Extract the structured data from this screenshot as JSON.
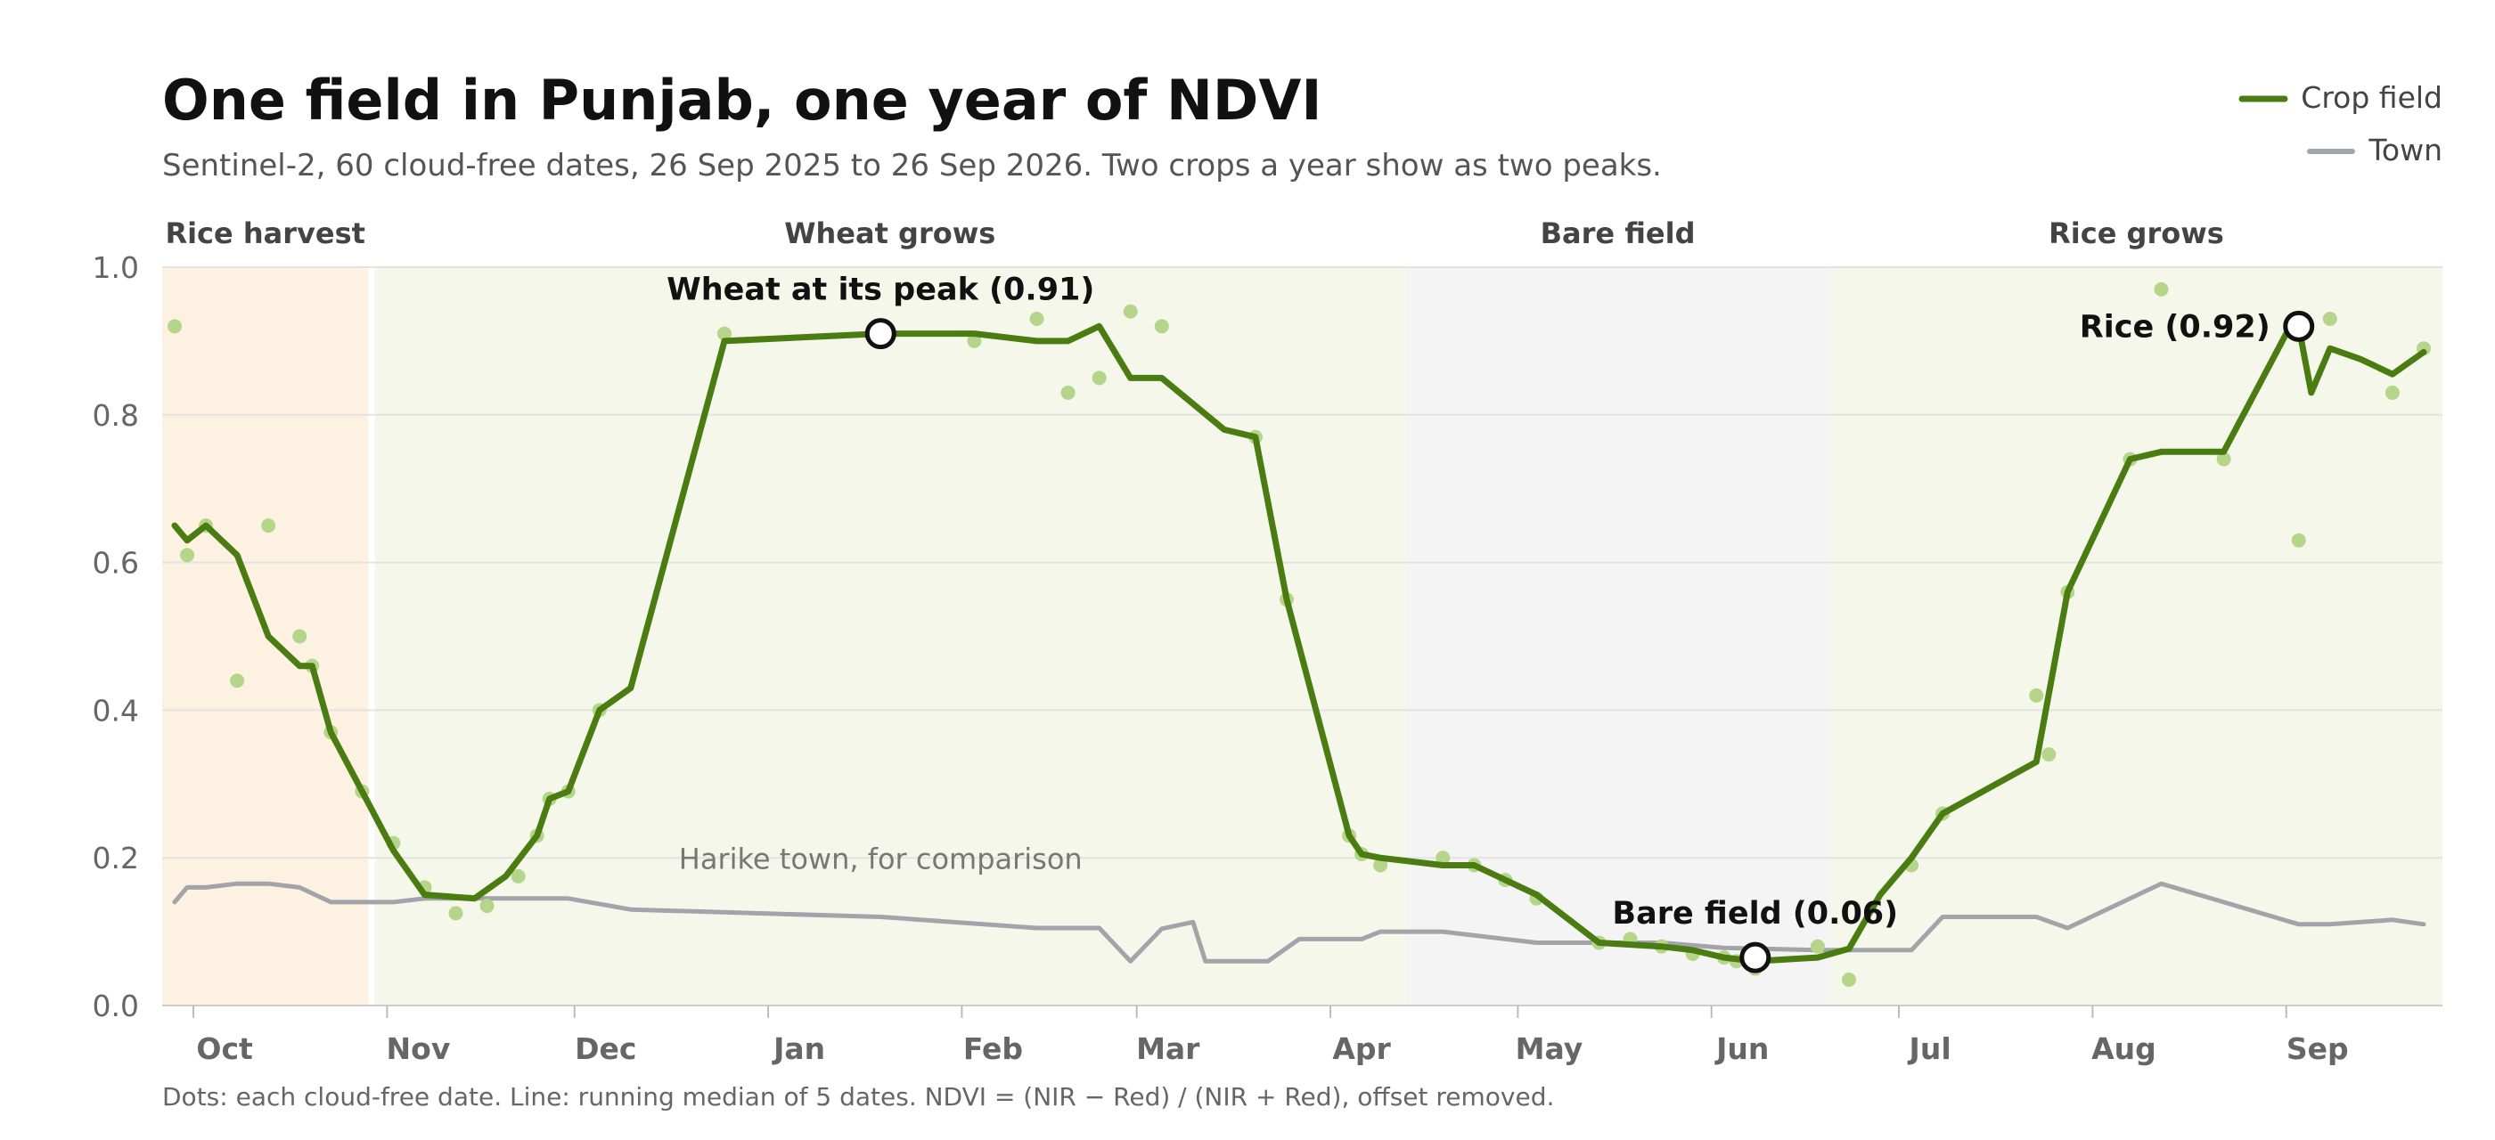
{
  "chart_data": {
    "type": "line",
    "title": "One field in Punjab, one year of NDVI",
    "subtitle": "Sentinel-2, 60 cloud-free dates, 26 Sep 2025 to 26 Sep 2026. Two crops a year show as two peaks.",
    "footnote": "Dots: each cloud-free date. Line: running median of 5 dates. NDVI = (NIR − Red) / (NIR + Red), offset removed.",
    "x_range": [
      "2025-09-26",
      "2026-09-26"
    ],
    "ylim": [
      0,
      1.0
    ],
    "yticks": [
      0.0,
      0.2,
      0.4,
      0.6,
      0.8,
      1.0
    ],
    "ytick_labels": [
      "0.0",
      "0.2",
      "0.4",
      "0.6",
      "0.8",
      "1.0"
    ],
    "grid": true,
    "legend_placement": "top-right",
    "colors": {
      "crop": "#4a7c12",
      "crop_dots": "#b5d68a",
      "town": "#a3a3aa"
    },
    "months": [
      {
        "label": "Oct",
        "tick": "2025-10-01",
        "label_at": "2025-10-06"
      },
      {
        "label": "Nov",
        "tick": "2025-11-01",
        "label_at": "2025-11-06"
      },
      {
        "label": "Dec",
        "tick": "2025-12-01",
        "label_at": "2025-12-06"
      },
      {
        "label": "Jan",
        "tick": "2026-01-01",
        "label_at": "2026-01-06"
      },
      {
        "label": "Feb",
        "tick": "2026-02-01",
        "label_at": "2026-02-06"
      },
      {
        "label": "Mar",
        "tick": "2026-03-01",
        "label_at": "2026-03-06"
      },
      {
        "label": "Apr",
        "tick": "2026-04-01",
        "label_at": "2026-04-06"
      },
      {
        "label": "May",
        "tick": "2026-05-01",
        "label_at": "2026-05-06"
      },
      {
        "label": "Jun",
        "tick": "2026-06-01",
        "label_at": "2026-06-06"
      },
      {
        "label": "Jul",
        "tick": "2026-07-01",
        "label_at": "2026-07-06"
      },
      {
        "label": "Aug",
        "tick": "2026-08-01",
        "label_at": "2026-08-06"
      },
      {
        "label": "Sep",
        "tick": "2026-09-01",
        "label_at": "2026-09-06"
      }
    ],
    "phases": [
      {
        "label": "Rice harvest",
        "start": "2025-09-26",
        "end": "2025-10-29",
        "color": "#fdf1e2"
      },
      {
        "label": "Wheat grows",
        "start": "2025-10-30",
        "end": "2026-04-13",
        "color": "#f5f7eb"
      },
      {
        "label": "Bare field",
        "start": "2026-04-13",
        "end": "2026-06-20",
        "color": "#f4f4f4"
      },
      {
        "label": "Rice grows",
        "start": "2026-06-20",
        "end": "2026-09-26",
        "color": "#f5f7eb"
      }
    ],
    "series": [
      {
        "name": "Crop field",
        "points": [
          [
            "2025-09-28",
            0.65
          ],
          [
            "2025-09-30",
            0.63
          ],
          [
            "2025-10-03",
            0.65
          ],
          [
            "2025-10-08",
            0.61
          ],
          [
            "2025-10-13",
            0.5
          ],
          [
            "2025-10-18",
            0.46
          ],
          [
            "2025-10-20",
            0.46
          ],
          [
            "2025-10-23",
            0.37
          ],
          [
            "2025-10-28",
            0.29
          ],
          [
            "2025-11-02",
            0.21
          ],
          [
            "2025-11-07",
            0.15
          ],
          [
            "2025-11-15",
            0.145
          ],
          [
            "2025-11-20",
            0.175
          ],
          [
            "2025-11-25",
            0.23
          ],
          [
            "2025-11-27",
            0.28
          ],
          [
            "2025-11-30",
            0.29
          ],
          [
            "2025-12-05",
            0.4
          ],
          [
            "2025-12-10",
            0.43
          ],
          [
            "2025-12-25",
            0.9
          ],
          [
            "2026-01-19",
            0.91
          ],
          [
            "2026-02-03",
            0.91
          ],
          [
            "2026-02-13",
            0.9
          ],
          [
            "2026-02-18",
            0.9
          ],
          [
            "2026-02-23",
            0.92
          ],
          [
            "2026-02-28",
            0.85
          ],
          [
            "2026-03-05",
            0.85
          ],
          [
            "2026-03-15",
            0.78
          ],
          [
            "2026-03-20",
            0.77
          ],
          [
            "2026-03-25",
            0.55
          ],
          [
            "2026-04-04",
            0.23
          ],
          [
            "2026-04-06",
            0.205
          ],
          [
            "2026-04-09",
            0.2
          ],
          [
            "2026-04-19",
            0.19
          ],
          [
            "2026-04-24",
            0.19
          ],
          [
            "2026-05-04",
            0.15
          ],
          [
            "2026-05-14",
            0.085
          ],
          [
            "2026-05-24",
            0.08
          ],
          [
            "2026-05-29",
            0.075
          ],
          [
            "2026-06-03",
            0.065
          ],
          [
            "2026-06-08",
            0.06
          ],
          [
            "2026-06-18",
            0.065
          ],
          [
            "2026-06-23",
            0.077
          ],
          [
            "2026-06-28",
            0.15
          ],
          [
            "2026-07-03",
            0.2
          ],
          [
            "2026-07-08",
            0.26
          ],
          [
            "2026-07-23",
            0.33
          ],
          [
            "2026-07-28",
            0.56
          ],
          [
            "2026-08-07",
            0.74
          ],
          [
            "2026-08-12",
            0.75
          ],
          [
            "2026-08-17",
            0.75
          ],
          [
            "2026-08-22",
            0.75
          ],
          [
            "2026-09-01",
            0.91
          ],
          [
            "2026-09-03",
            0.92
          ],
          [
            "2026-09-05",
            0.83
          ],
          [
            "2026-09-08",
            0.89
          ],
          [
            "2026-09-13",
            0.875
          ],
          [
            "2026-09-18",
            0.855
          ],
          [
            "2026-09-23",
            0.885
          ]
        ],
        "dots": [
          [
            "2025-09-28",
            0.92
          ],
          [
            "2025-09-30",
            0.61
          ],
          [
            "2025-10-03",
            0.65
          ],
          [
            "2025-10-08",
            0.44
          ],
          [
            "2025-10-13",
            0.65
          ],
          [
            "2025-10-18",
            0.5
          ],
          [
            "2025-10-20",
            0.46
          ],
          [
            "2025-10-23",
            0.37
          ],
          [
            "2025-10-28",
            0.29
          ],
          [
            "2025-11-02",
            0.22
          ],
          [
            "2025-11-07",
            0.16
          ],
          [
            "2025-11-12",
            0.125
          ],
          [
            "2025-11-17",
            0.135
          ],
          [
            "2025-11-22",
            0.175
          ],
          [
            "2025-11-25",
            0.23
          ],
          [
            "2025-11-27",
            0.28
          ],
          [
            "2025-11-30",
            0.29
          ],
          [
            "2025-12-05",
            0.4
          ],
          [
            "2025-12-25",
            0.91
          ],
          [
            "2026-02-03",
            0.9
          ],
          [
            "2026-02-13",
            0.93
          ],
          [
            "2026-02-18",
            0.83
          ],
          [
            "2026-02-23",
            0.85
          ],
          [
            "2026-02-28",
            0.94
          ],
          [
            "2026-03-05",
            0.92
          ],
          [
            "2026-03-20",
            0.77
          ],
          [
            "2026-03-25",
            0.55
          ],
          [
            "2026-04-04",
            0.23
          ],
          [
            "2026-04-06",
            0.205
          ],
          [
            "2026-04-09",
            0.19
          ],
          [
            "2026-04-19",
            0.2
          ],
          [
            "2026-04-24",
            0.19
          ],
          [
            "2026-04-29",
            0.17
          ],
          [
            "2026-05-04",
            0.145
          ],
          [
            "2026-05-14",
            0.085
          ],
          [
            "2026-05-19",
            0.09
          ],
          [
            "2026-05-24",
            0.08
          ],
          [
            "2026-05-29",
            0.07
          ],
          [
            "2026-06-03",
            0.065
          ],
          [
            "2026-06-05",
            0.06
          ],
          [
            "2026-06-08",
            0.05
          ],
          [
            "2026-06-18",
            0.08
          ],
          [
            "2026-06-23",
            0.035
          ],
          [
            "2026-07-03",
            0.19
          ],
          [
            "2026-07-08",
            0.26
          ],
          [
            "2026-07-23",
            0.42
          ],
          [
            "2026-07-25",
            0.34
          ],
          [
            "2026-07-28",
            0.56
          ],
          [
            "2026-08-07",
            0.74
          ],
          [
            "2026-08-12",
            0.97
          ],
          [
            "2026-08-22",
            0.74
          ],
          [
            "2026-09-03",
            0.63
          ],
          [
            "2026-09-08",
            0.93
          ],
          [
            "2026-09-18",
            0.83
          ],
          [
            "2026-09-23",
            0.89
          ]
        ]
      },
      {
        "name": "Town",
        "points": [
          [
            "2025-09-28",
            0.14
          ],
          [
            "2025-09-30",
            0.16
          ],
          [
            "2025-10-03",
            0.16
          ],
          [
            "2025-10-08",
            0.165
          ],
          [
            "2025-10-13",
            0.165
          ],
          [
            "2025-10-18",
            0.16
          ],
          [
            "2025-10-23",
            0.14
          ],
          [
            "2025-11-02",
            0.14
          ],
          [
            "2025-11-07",
            0.145
          ],
          [
            "2025-11-15",
            0.145
          ],
          [
            "2025-11-30",
            0.145
          ],
          [
            "2025-12-10",
            0.13
          ],
          [
            "2026-01-19",
            0.12
          ],
          [
            "2026-02-08",
            0.108
          ],
          [
            "2026-02-13",
            0.105
          ],
          [
            "2026-02-23",
            0.105
          ],
          [
            "2026-02-28",
            0.06
          ],
          [
            "2026-03-05",
            0.104
          ],
          [
            "2026-03-10",
            0.113
          ],
          [
            "2026-03-12",
            0.06
          ],
          [
            "2026-03-22",
            0.06
          ],
          [
            "2026-03-27",
            0.09
          ],
          [
            "2026-04-01",
            0.09
          ],
          [
            "2026-04-06",
            0.09
          ],
          [
            "2026-04-09",
            0.1
          ],
          [
            "2026-04-19",
            0.1
          ],
          [
            "2026-05-04",
            0.085
          ],
          [
            "2026-05-14",
            0.085
          ],
          [
            "2026-05-24",
            0.085
          ],
          [
            "2026-06-03",
            0.078
          ],
          [
            "2026-06-18",
            0.075
          ],
          [
            "2026-06-28",
            0.075
          ],
          [
            "2026-07-03",
            0.075
          ],
          [
            "2026-07-08",
            0.12
          ],
          [
            "2026-07-23",
            0.12
          ],
          [
            "2026-07-28",
            0.105
          ],
          [
            "2026-08-12",
            0.165
          ],
          [
            "2026-08-22",
            0.14
          ],
          [
            "2026-09-03",
            0.11
          ],
          [
            "2026-09-08",
            0.11
          ],
          [
            "2026-09-13",
            0.113
          ],
          [
            "2026-09-18",
            0.116
          ],
          [
            "2026-09-23",
            0.11
          ]
        ]
      }
    ],
    "annotations": [
      {
        "text": "Wheat at its peak (0.91)",
        "x": "2026-01-19",
        "y": 0.91,
        "placement": "above"
      },
      {
        "text": "Bare field (0.06)",
        "x": "2026-06-08",
        "y": 0.065,
        "placement": "above"
      },
      {
        "text": "Rice (0.92)",
        "x": "2026-09-03",
        "y": 0.92,
        "placement": "left"
      }
    ],
    "town_label": {
      "text": "Harike town, for comparison",
      "x": "2026-01-19",
      "y": 0.185
    }
  }
}
